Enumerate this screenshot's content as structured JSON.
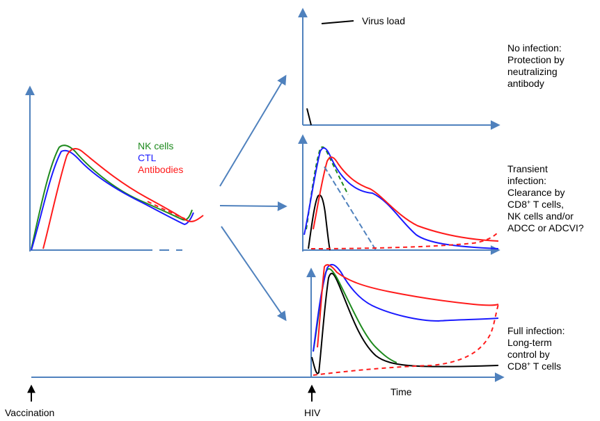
{
  "legend": {
    "nk": "NK cells",
    "nk_color": "#1e8a1e",
    "ctl": "CTL",
    "ctl_color": "#1a1aff",
    "ab": "Antibodies",
    "ab_color": "#ff1a1a"
  },
  "virus_load_label": "Virus load",
  "outcomes": {
    "no_infection": [
      "No infection:",
      "Protection by",
      "neutralizing",
      "antibody"
    ],
    "transient": [
      "Transient",
      "infection:",
      "Clearance by",
      "CD8+ T cells,",
      "NK cells and/or",
      "ADCC or ADCVI?"
    ],
    "full": [
      "Full infection:",
      "Long-term",
      "control by",
      "CD8+ T cells"
    ]
  },
  "axis_labels": {
    "time": "Time",
    "vaccination": "Vaccination",
    "hiv": "HIV"
  },
  "colors": {
    "axis": "#4f81bd",
    "virus": "#000000"
  }
}
